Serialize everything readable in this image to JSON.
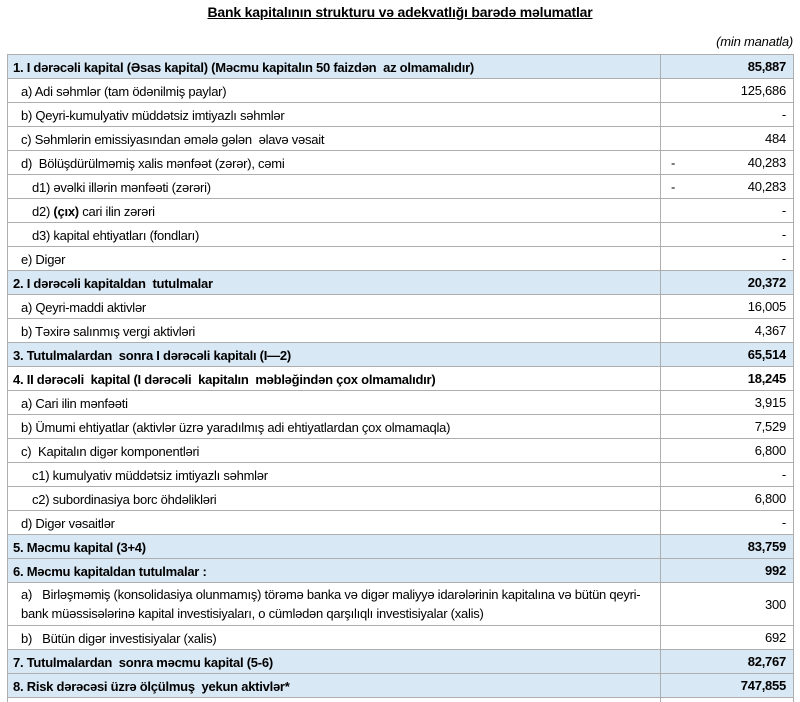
{
  "title": "Bank kapitalının strukturu və adekvatlığı barədə məlumatlar",
  "unit_note": "(min manatla)",
  "colors": {
    "shaded_row_bg": "#d9e8f5",
    "border": "#aeaeae",
    "text": "#000000",
    "page_bg": "#ffffff"
  },
  "table": {
    "columns": [
      "indicator",
      "amount"
    ],
    "rows": [
      {
        "parts": [
          {
            "t": "1. I dərəcəli kapital",
            "b": true
          },
          {
            "t": " (Əsas kapital) (Məcmu kapitalın 50 faizdən  az olmamalıdır)",
            "b": false
          }
        ],
        "sign": "",
        "value": "85,887",
        "shaded": true,
        "bold": true,
        "indent": 0,
        "tall": false
      },
      {
        "parts": [
          {
            "t": "a) Adi səhmlər (tam ödənilmiş paylar)",
            "b": false
          }
        ],
        "sign": "",
        "value": "125,686",
        "shaded": false,
        "bold": false,
        "indent": 1,
        "tall": false
      },
      {
        "parts": [
          {
            "t": "b) Qeyri-kumulyativ müddətsiz imtiyazlı səhmlər",
            "b": false
          }
        ],
        "sign": "",
        "value": "-",
        "shaded": false,
        "bold": false,
        "indent": 1,
        "tall": false
      },
      {
        "parts": [
          {
            "t": "c) Səhmlərin emissiyasından əmələ gələn  əlavə vəsait",
            "b": false
          }
        ],
        "sign": "",
        "value": "484",
        "shaded": false,
        "bold": false,
        "indent": 1,
        "tall": false
      },
      {
        "parts": [
          {
            "t": "d)  Bölüşdürülməmiş xalis mənfəət (zərər), cəmi",
            "b": false
          }
        ],
        "sign": "-",
        "value": "40,283",
        "shaded": false,
        "bold": false,
        "indent": 1,
        "tall": false
      },
      {
        "parts": [
          {
            "t": "d1) əvəlki illərin mənfəəti (zərəri)",
            "b": false
          }
        ],
        "sign": "-",
        "value": "40,283",
        "shaded": false,
        "bold": false,
        "indent": 2,
        "tall": false
      },
      {
        "parts": [
          {
            "t": "d2) ",
            "b": false
          },
          {
            "t": "(çıx)",
            "b": true
          },
          {
            "t": " cari ilin zərəri",
            "b": false
          }
        ],
        "sign": "",
        "value": "-",
        "shaded": false,
        "bold": false,
        "indent": 2,
        "tall": false
      },
      {
        "parts": [
          {
            "t": "d3) kapital ehtiyatları (fondları)",
            "b": false
          }
        ],
        "sign": "",
        "value": "-",
        "shaded": false,
        "bold": false,
        "indent": 2,
        "tall": false
      },
      {
        "parts": [
          {
            "t": "e) Digər",
            "b": false
          }
        ],
        "sign": "",
        "value": "-",
        "shaded": false,
        "bold": false,
        "indent": 1,
        "tall": false
      },
      {
        "parts": [
          {
            "t": "2. I dərəcəli kapitaldan  tutulmalar",
            "b": true
          }
        ],
        "sign": "",
        "value": "20,372",
        "shaded": true,
        "bold": true,
        "indent": 0,
        "tall": false
      },
      {
        "parts": [
          {
            "t": "a) Qeyri-maddi aktivlər",
            "b": false
          }
        ],
        "sign": "",
        "value": "16,005",
        "shaded": false,
        "bold": false,
        "indent": 1,
        "tall": false
      },
      {
        "parts": [
          {
            "t": "b) Təxirə salınmış vergi aktivləri",
            "b": false
          }
        ],
        "sign": "",
        "value": "4,367",
        "shaded": false,
        "bold": false,
        "indent": 1,
        "tall": false
      },
      {
        "parts": [
          {
            "t": "3. Tutulmalardan  sonra I dərəcəli kapitalı (I—2)",
            "b": true
          }
        ],
        "sign": "",
        "value": "65,514",
        "shaded": true,
        "bold": true,
        "indent": 0,
        "tall": false
      },
      {
        "parts": [
          {
            "t": "4. II dərəcəli  kapital",
            "b": true
          },
          {
            "t": " (I dərəcəli  kapitalın  məbləğindən çox olmamalıdır)",
            "b": false
          }
        ],
        "sign": "",
        "value": "18,245",
        "shaded": false,
        "bold": true,
        "indent": 0,
        "tall": false,
        "value_only_bold": false
      },
      {
        "parts": [
          {
            "t": "a) Cari ilin mənfəəti",
            "b": false
          }
        ],
        "sign": "",
        "value": "3,915",
        "shaded": false,
        "bold": false,
        "indent": 1,
        "tall": false
      },
      {
        "parts": [
          {
            "t": "b) Ümumi ehtiyatlar (aktivlər üzrə yaradılmış adi ehtiyatlardan çox olmamaqla)",
            "b": false
          }
        ],
        "sign": "",
        "value": "7,529",
        "shaded": false,
        "bold": false,
        "indent": 1,
        "tall": false
      },
      {
        "parts": [
          {
            "t": "c)  Kapitalın digər komponentləri",
            "b": false
          }
        ],
        "sign": "",
        "value": "6,800",
        "shaded": false,
        "bold": false,
        "indent": 1,
        "tall": false
      },
      {
        "parts": [
          {
            "t": "c1) kumulyativ müddətsiz imtiyazlı səhmlər",
            "b": false
          }
        ],
        "sign": "",
        "value": "-",
        "shaded": false,
        "bold": false,
        "indent": 2,
        "tall": false
      },
      {
        "parts": [
          {
            "t": "c2) subordinasiya borc öhdəlikləri",
            "b": false
          }
        ],
        "sign": "",
        "value": "6,800",
        "shaded": false,
        "bold": false,
        "indent": 2,
        "tall": false
      },
      {
        "parts": [
          {
            "t": "d) Digər vəsaitlər",
            "b": false
          }
        ],
        "sign": "",
        "value": "-",
        "shaded": false,
        "bold": false,
        "indent": 1,
        "tall": false
      },
      {
        "parts": [
          {
            "t": "5. Məcmu kapital (3+4)",
            "b": true
          }
        ],
        "sign": "",
        "value": "83,759",
        "shaded": true,
        "bold": true,
        "indent": 0,
        "tall": false
      },
      {
        "parts": [
          {
            "t": "6. Məcmu kapitaldan tutulmalar :",
            "b": true
          }
        ],
        "sign": "",
        "value": "992",
        "shaded": true,
        "bold": true,
        "indent": 0,
        "tall": false
      },
      {
        "parts": [
          {
            "t": "a)   Birləşməmiş (konsolidasiya olunmamış) törəmə banka və digər maliyyə idarələrinin kapitalına və bütün qeyri-bank müəssisələrinə kapital investisiyaları, o cümlədən qarşılıqlı investisiyalar (xalis)",
            "b": false
          }
        ],
        "sign": "",
        "value": "300",
        "shaded": false,
        "bold": false,
        "indent": 1,
        "tall": true
      },
      {
        "parts": [
          {
            "t": "b)   Bütün digər investisiyalar (xalis)",
            "b": false
          }
        ],
        "sign": "",
        "value": "692",
        "shaded": false,
        "bold": false,
        "indent": 1,
        "tall": false
      },
      {
        "parts": [
          {
            "t": "7. Tutulmalardan  sonra məcmu kapital (5-6)",
            "b": true
          }
        ],
        "sign": "",
        "value": "82,767",
        "shaded": true,
        "bold": true,
        "indent": 0,
        "tall": false
      },
      {
        "parts": [
          {
            "t": "8. Risk dərəcəsi üzrə ölçülmuş  yekun aktivlər*",
            "b": true
          }
        ],
        "sign": "",
        "value": "747,855",
        "shaded": true,
        "bold": true,
        "indent": 0,
        "tall": false
      },
      {
        "parts": [],
        "sign": "",
        "value": "",
        "shaded": false,
        "bold": false,
        "indent": 0,
        "tall": false,
        "partial": true
      }
    ]
  }
}
